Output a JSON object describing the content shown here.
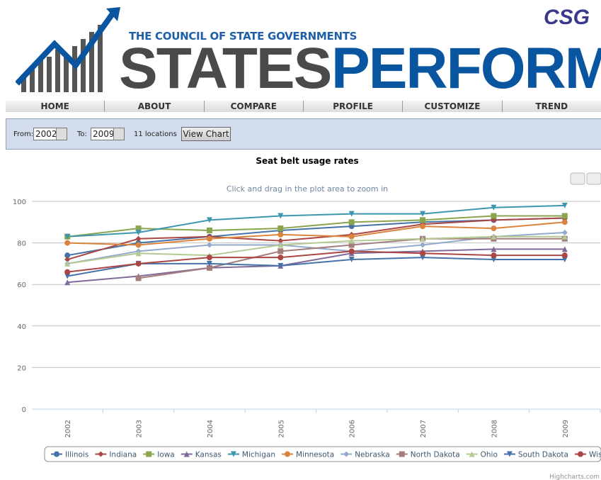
{
  "header": {
    "org": "THE COUNCIL OF STATE GOVERNMENTS",
    "brand_left": "STATES",
    "brand_right": "PERFORM",
    "corner_logo": "CSG"
  },
  "nav": [
    "HOME",
    "ABOUT",
    "COMPARE",
    "PROFILE",
    "CUSTOMIZE",
    "TREND"
  ],
  "controls": {
    "from_label": "From:",
    "from_value": "2002",
    "to_label": "To:",
    "to_value": "2009",
    "locations": "11 locations",
    "button": "View Chart"
  },
  "credit": "Highcharts.com",
  "chart_data": {
    "type": "line",
    "title": "Seat belt usage rates",
    "subtitle": "Click and drag in the plot area to zoom in",
    "categories": [
      "2002",
      "2003",
      "2004",
      "2005",
      "2006",
      "2007",
      "2008",
      "2009"
    ],
    "ylim": [
      0,
      100
    ],
    "yticks": [
      0,
      20,
      40,
      60,
      80,
      100
    ],
    "grid": true,
    "legend": "bottom",
    "series": [
      {
        "name": "Illinois",
        "color": "#4572A7",
        "symbol": "circle",
        "values": [
          74,
          80,
          83,
          86,
          88,
          90,
          91,
          92
        ]
      },
      {
        "name": "Indiana",
        "color": "#AA4643",
        "symbol": "diamond",
        "values": [
          72,
          82,
          83,
          81,
          84,
          89,
          91,
          92
        ]
      },
      {
        "name": "Iowa",
        "color": "#89A54E",
        "symbol": "square",
        "values": [
          83,
          87,
          86,
          87,
          90,
          91,
          93,
          93
        ]
      },
      {
        "name": "Kansas",
        "color": "#80699B",
        "symbol": "triangle",
        "values": [
          61,
          64,
          68,
          69,
          75,
          76,
          77,
          77
        ]
      },
      {
        "name": "Michigan",
        "color": "#3D96AE",
        "symbol": "triangle-down",
        "values": [
          83,
          85,
          91,
          93,
          94,
          94,
          97,
          98
        ]
      },
      {
        "name": "Minnesota",
        "color": "#DB843D",
        "symbol": "circle",
        "values": [
          80,
          79,
          82,
          84,
          83,
          88,
          87,
          90
        ]
      },
      {
        "name": "Nebraska",
        "color": "#92A8CD",
        "symbol": "diamond",
        "values": [
          70,
          76,
          79,
          79,
          76,
          79,
          83,
          85
        ]
      },
      {
        "name": "North Dakota",
        "color": "#A47D7C",
        "symbol": "square",
        "values": [
          null,
          63,
          68,
          76,
          79,
          82,
          82,
          82
        ]
      },
      {
        "name": "Ohio",
        "color": "#B5CA92",
        "symbol": "triangle",
        "values": [
          70,
          75,
          74,
          79,
          81,
          82,
          83,
          83
        ]
      },
      {
        "name": "South Dakota",
        "color": "#4572A7",
        "symbol": "triangle-down",
        "values": [
          64,
          70,
          70,
          69,
          72,
          73,
          72,
          72
        ]
      },
      {
        "name": "Wisconsin",
        "color": "#AA4643",
        "symbol": "circle",
        "values": [
          66,
          70,
          73,
          73,
          76,
          75,
          74,
          74
        ]
      }
    ]
  }
}
